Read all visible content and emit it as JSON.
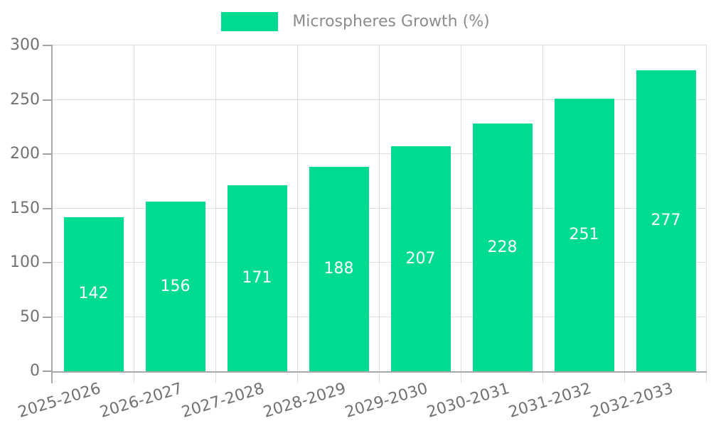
{
  "chart_data": {
    "type": "bar",
    "title": "Microspheres Growth (%)",
    "legend": [
      "Microspheres Growth (%)"
    ],
    "legend_position": "top-center",
    "categories": [
      "2025-2026",
      "2026-2027",
      "2027-2028",
      "2028-2029",
      "2029-2030",
      "2030-2031",
      "2031-2032",
      "2032-2033"
    ],
    "series": [
      {
        "name": "Microspheres Growth (%)",
        "values": [
          142,
          156,
          171,
          188,
          207,
          228,
          251,
          277
        ]
      }
    ],
    "xlabel": "",
    "ylabel": "",
    "ylim": [
      0,
      300
    ],
    "yticks": [
      0,
      50,
      100,
      150,
      200,
      250,
      300
    ],
    "grid": true,
    "value_labels": "inside-center"
  },
  "colors": {
    "bar": "#00DC8F",
    "value_label_text": "#FFFFFF",
    "axis_line": "#A8A8A8",
    "tick": "#A0A0A0",
    "gridline": "#DEDEDE",
    "axis_text": "#717171",
    "legend_text": "#8C8C8C",
    "background": "#FFFFFF"
  }
}
